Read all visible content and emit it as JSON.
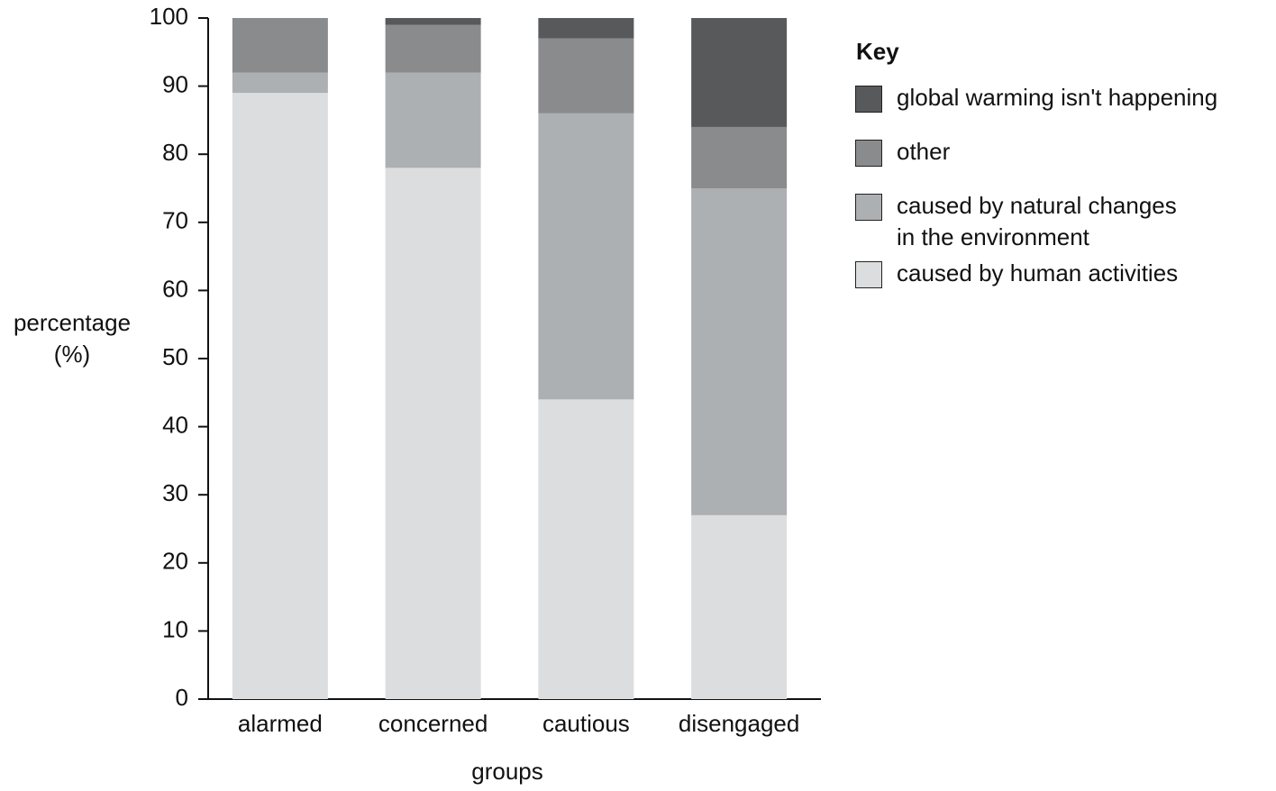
{
  "chart_data": {
    "type": "stacked_bar",
    "x_label": "groups",
    "y_label": "percentage\n(%)",
    "legend_title": "Key",
    "categories": [
      "alarmed",
      "concerned",
      "cautious",
      "disengaged"
    ],
    "series": [
      {
        "name": "caused by human activities",
        "color": "#dcdddf",
        "values": [
          89,
          78,
          44,
          27
        ]
      },
      {
        "name": "caused by natural changes\nin the environment",
        "color": "#adb0b3",
        "values": [
          3,
          14,
          42,
          48
        ]
      },
      {
        "name": "other",
        "color": "#8a8b8d",
        "values": [
          8,
          7,
          11,
          9
        ]
      },
      {
        "name": "global warming isn't happening",
        "color": "#58595b",
        "values": [
          0,
          1,
          3,
          16
        ]
      }
    ],
    "ylim": [
      0,
      100
    ],
    "yticks": [
      0,
      10,
      20,
      30,
      40,
      50,
      60,
      70,
      80,
      90,
      100
    ]
  }
}
